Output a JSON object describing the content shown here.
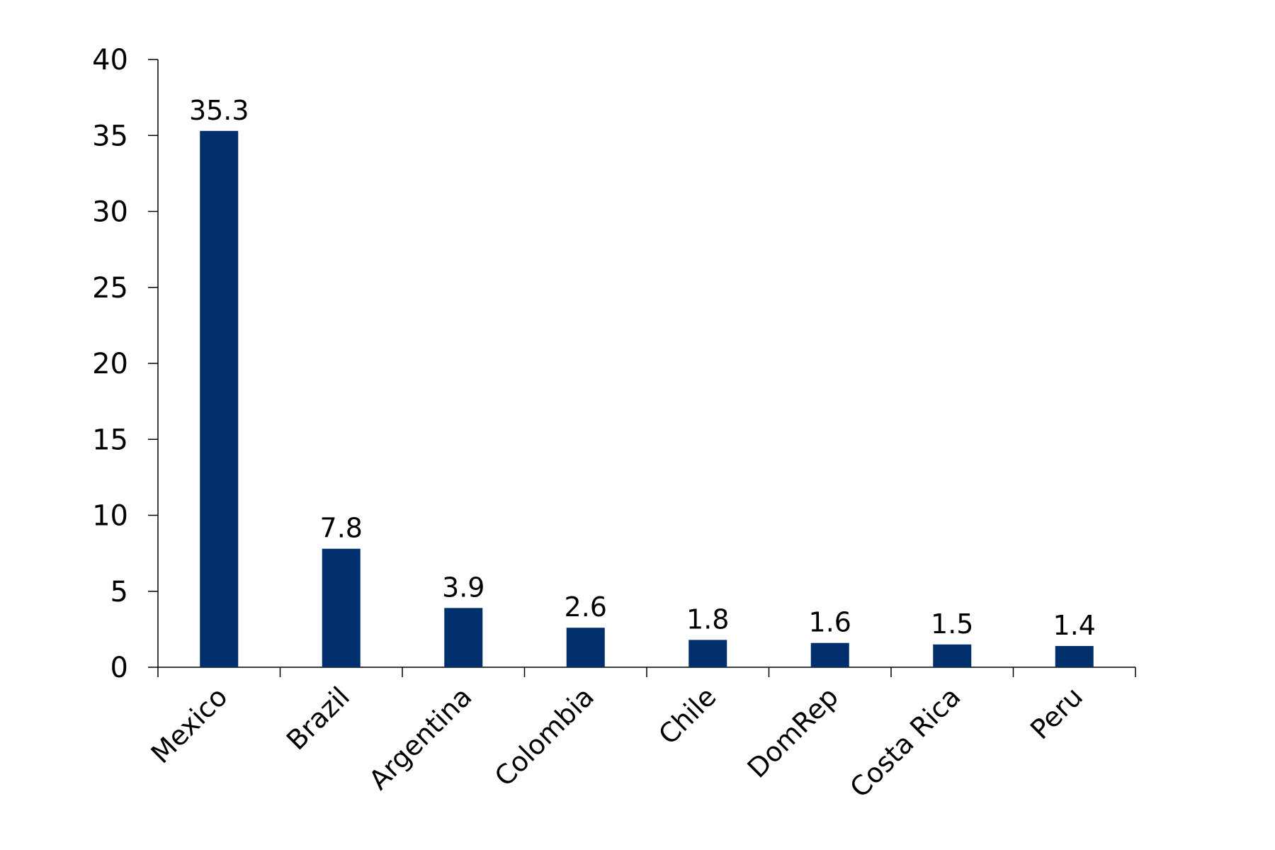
{
  "chart_data": {
    "type": "bar",
    "title": "",
    "xlabel": "",
    "ylabel": "",
    "categories": [
      "Mexico",
      "Brazil",
      "Argentina",
      "Colombia",
      "Chile",
      "DomRep",
      "Costa Rica",
      "Peru"
    ],
    "values": [
      35.3,
      7.8,
      3.9,
      2.6,
      1.8,
      1.6,
      1.5,
      1.4
    ],
    "value_labels": [
      "35.3",
      "7.8",
      "3.9",
      "2.6",
      "1.8",
      "1.6",
      "1.5",
      "1.4"
    ],
    "ylim": [
      0,
      40
    ],
    "yticks": [
      0,
      5,
      10,
      15,
      20,
      25,
      30,
      35,
      40
    ],
    "ytick_labels": [
      "0",
      "5",
      "10",
      "15",
      "20",
      "25",
      "30",
      "35",
      "40"
    ],
    "grid": false,
    "legend": "none",
    "bar_color": "#002f6c"
  }
}
